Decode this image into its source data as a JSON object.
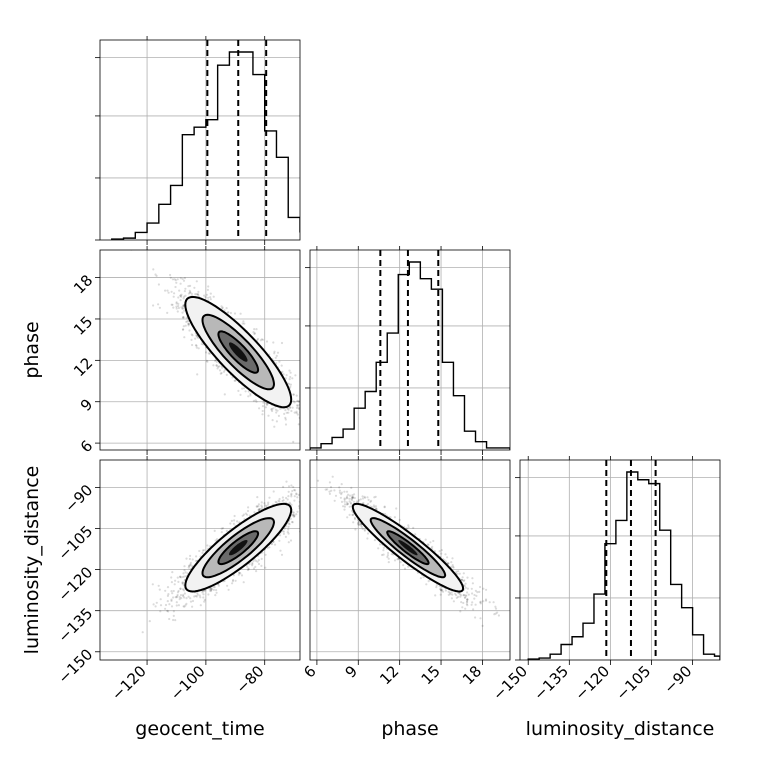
{
  "chart_data": {
    "type": "corner",
    "grid": true,
    "parameters": [
      {
        "name": "geocent_time",
        "label": "geocent_time",
        "range": [
          -136,
          -68
        ],
        "ticks": [
          -120,
          -100,
          -80
        ],
        "tick_labels": [
          "−120",
          "−100",
          "−80"
        ],
        "mean": -89,
        "std": 9,
        "quantiles": [
          -99.5,
          -89,
          -79.5
        ],
        "histogram": {
          "bin_edges": [
            -132,
            -128,
            -124,
            -120,
            -116,
            -112,
            -108,
            -104,
            -100,
            -96,
            -92,
            -88,
            -84,
            -80,
            -76,
            -72,
            -68
          ],
          "counts": [
            0.5,
            1,
            4,
            9,
            19,
            29,
            56,
            60,
            64,
            93,
            100,
            100,
            88,
            58,
            44,
            12,
            4
          ]
        }
      },
      {
        "name": "phase",
        "label": "phase",
        "range": [
          5.5,
          20
        ],
        "ticks": [
          6,
          9,
          12,
          15,
          18
        ],
        "tick_labels": [
          "6",
          "9",
          "12",
          "15",
          "18"
        ],
        "mean": 12.6,
        "std": 2,
        "quantiles": [
          10.6,
          12.6,
          14.8
        ],
        "histogram": {
          "bin_edges": [
            5.5,
            6.3,
            7.1,
            7.9,
            8.7,
            9.5,
            10.3,
            11.1,
            11.9,
            12.7,
            13.5,
            14.3,
            15.1,
            15.9,
            16.7,
            17.5,
            18.3,
            19.1,
            20
          ],
          "counts": [
            1,
            3,
            6,
            10,
            20,
            28,
            42,
            56,
            84,
            90,
            82,
            77,
            42,
            26,
            9,
            4,
            1,
            1
          ]
        }
      },
      {
        "name": "luminosity_distance",
        "label": "luminosity_distance",
        "range": [
          -153,
          -80
        ],
        "ticks": [
          -150,
          -135,
          -120,
          -105,
          -90
        ],
        "tick_labels": [
          "−150",
          "−135",
          "−120",
          "−105",
          "−90"
        ],
        "mean": -112,
        "std": 8,
        "quantiles": [
          -121.5,
          -112.5,
          -103.5
        ],
        "histogram": {
          "bin_edges": [
            -150,
            -146,
            -142,
            -138,
            -134,
            -130,
            -126,
            -122,
            -118,
            -114,
            -110,
            -106,
            -102,
            -98,
            -94,
            -90,
            -86,
            -82,
            -80
          ],
          "counts": [
            0.5,
            1,
            3,
            8,
            12,
            19,
            34,
            60,
            72,
            97,
            93,
            91,
            67,
            39,
            27,
            13,
            3,
            2
          ]
        }
      }
    ],
    "pairs": [
      {
        "x": "geocent_time",
        "y": "phase",
        "correlation": -0.86
      },
      {
        "x": "geocent_time",
        "y": "luminosity_distance",
        "correlation": 0.86
      },
      {
        "x": "phase",
        "y": "luminosity_distance",
        "correlation": -0.93
      }
    ]
  }
}
